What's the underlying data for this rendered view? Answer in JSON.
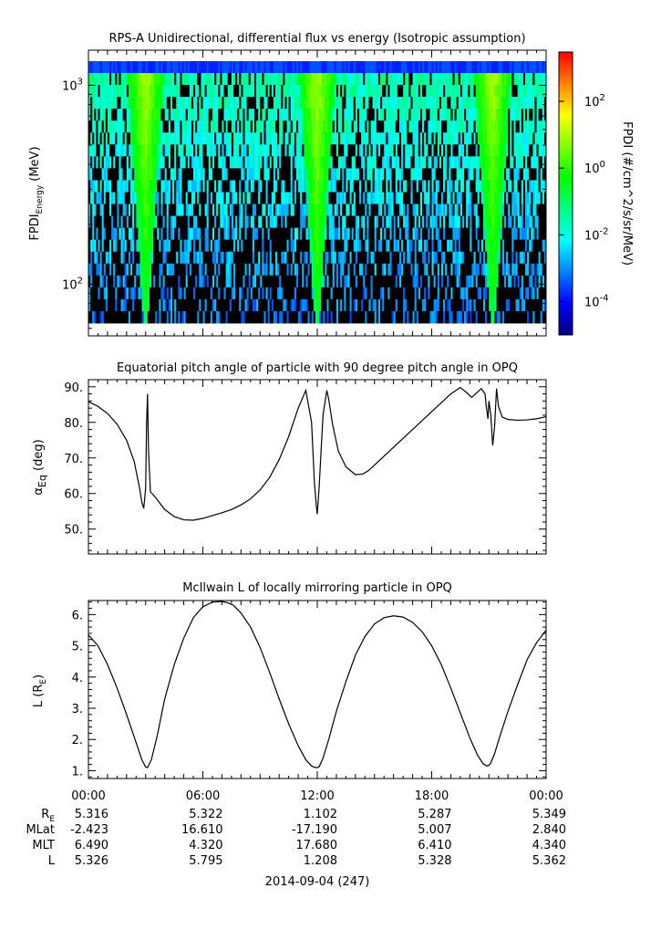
{
  "chart_data": [
    {
      "type": "heatmap",
      "title": "RPS-A Unidirectional, differential flux vs energy (Isotropic assumption)",
      "ylabel_main": "FPDI",
      "ylabel_sub": "Energy",
      "ylabel_unit": " (MeV)",
      "yscale": "log",
      "ylim": [
        55,
        1500
      ],
      "yticks": [
        {
          "value": 100,
          "base": "10",
          "exp": "2"
        },
        {
          "value": 1000,
          "base": "10",
          "exp": "3"
        }
      ],
      "zlabel": "FPDI (#/cm^2/s/sr/MeV)",
      "zscale": "log",
      "zlim": [
        1e-05,
        3000
      ],
      "zticks": [
        {
          "value": 100,
          "base": "10",
          "exp": "2"
        },
        {
          "value": 1,
          "base": "10",
          "exp": "0"
        },
        {
          "value": 0.01,
          "base": "10",
          "exp": "-2"
        },
        {
          "value": 0.0001,
          "base": "10",
          "exp": "-4"
        }
      ],
      "colormap": [
        "#00007f",
        "#0000ff",
        "#0080ff",
        "#00ffff",
        "#00ff80",
        "#00ff00",
        "#80ff00",
        "#ffff00",
        "#ff8000",
        "#ff0000"
      ],
      "radiation_belt_passes_hours": [
        3.0,
        12.0,
        21.2
      ]
    },
    {
      "type": "line",
      "title": "Equatorial pitch angle of particle with 90 degree pitch angle in OPQ",
      "ylabel_main": "α",
      "ylabel_sub": "Eq",
      "ylabel_unit": " (deg)",
      "ylim": [
        43,
        92
      ],
      "yticks": [
        "50.",
        "60.",
        "70.",
        "80.",
        "90."
      ],
      "x": [
        0,
        0.5,
        1.0,
        1.5,
        2.0,
        2.4,
        2.7,
        2.8,
        2.9,
        3.0,
        3.05,
        3.1,
        3.15,
        3.25,
        3.5,
        4.0,
        4.5,
        5.0,
        5.5,
        6.0,
        6.5,
        7.0,
        7.5,
        8.0,
        8.5,
        9.0,
        9.5,
        10.0,
        10.5,
        11.0,
        11.4,
        11.7,
        11.85,
        11.95,
        12.0,
        12.1,
        12.3,
        12.5,
        12.6,
        12.8,
        13.1,
        13.5,
        14.0,
        14.4,
        14.7,
        15.0,
        15.5,
        16.0,
        16.5,
        17.0,
        17.5,
        18.0,
        18.5,
        19.0,
        19.5,
        19.8,
        20.1,
        20.4,
        20.6,
        20.8,
        20.85,
        20.9,
        20.95,
        21.0,
        21.1,
        21.2,
        21.3,
        21.4,
        21.5,
        21.7,
        22.0,
        22.5,
        23.0,
        23.5,
        24.0
      ],
      "y": [
        85.8,
        84.5,
        82.5,
        79.5,
        75.0,
        69.0,
        61.0,
        57.5,
        55.8,
        61.5,
        80.0,
        88.0,
        72.0,
        60.5,
        59.0,
        55.5,
        53.5,
        52.6,
        52.5,
        53.0,
        53.8,
        54.6,
        55.5,
        56.8,
        58.5,
        61.0,
        64.5,
        69.5,
        76.0,
        84.0,
        89.0,
        80.0,
        63.0,
        56.5,
        54.2,
        62.0,
        82.0,
        89.0,
        86.5,
        79.5,
        72.0,
        67.5,
        65.3,
        65.5,
        66.5,
        68.0,
        70.5,
        73.0,
        75.5,
        78.0,
        80.5,
        83.0,
        85.5,
        88.0,
        89.8,
        88.5,
        87.0,
        88.5,
        89.5,
        88.0,
        85.0,
        83.0,
        81.0,
        86.0,
        82.0,
        73.5,
        79.0,
        89.5,
        84.5,
        81.5,
        80.8,
        80.6,
        80.7,
        81.0,
        81.6
      ]
    },
    {
      "type": "line",
      "title": "McIlwain L of locally mirroring particle in OPQ",
      "ylabel_main": "L (R",
      "ylabel_sub": "E",
      "ylabel_unit": ")",
      "ylim": [
        0.75,
        6.45
      ],
      "yticks": [
        "1.",
        "2.",
        "3.",
        "4.",
        "5.",
        "6."
      ],
      "x": [
        0,
        0.5,
        1.0,
        1.5,
        2.0,
        2.5,
        2.8,
        3.0,
        3.1,
        3.3,
        3.6,
        4.0,
        4.5,
        5.0,
        5.5,
        6.0,
        6.5,
        7.0,
        7.3,
        7.6,
        8.0,
        8.5,
        9.0,
        9.5,
        10.0,
        10.5,
        11.0,
        11.4,
        11.7,
        11.9,
        12.0,
        12.1,
        12.3,
        12.6,
        13.0,
        13.5,
        14.0,
        14.5,
        15.0,
        15.5,
        16.0,
        16.5,
        17.0,
        17.5,
        18.0,
        18.5,
        19.0,
        19.5,
        20.0,
        20.4,
        20.7,
        20.9,
        21.0,
        21.1,
        21.3,
        21.6,
        22.0,
        22.5,
        23.0,
        23.5,
        24.0
      ],
      "y": [
        5.35,
        5.0,
        4.4,
        3.65,
        2.8,
        1.9,
        1.35,
        1.12,
        1.1,
        1.35,
        2.1,
        3.3,
        4.4,
        5.25,
        5.9,
        6.25,
        6.4,
        6.42,
        6.38,
        6.3,
        6.05,
        5.6,
        4.95,
        4.15,
        3.3,
        2.5,
        1.8,
        1.35,
        1.15,
        1.1,
        1.1,
        1.13,
        1.4,
        2.0,
        2.9,
        3.85,
        4.7,
        5.3,
        5.7,
        5.9,
        5.96,
        5.92,
        5.75,
        5.45,
        5.0,
        4.4,
        3.65,
        2.85,
        2.05,
        1.5,
        1.22,
        1.15,
        1.17,
        1.25,
        1.55,
        2.15,
        2.9,
        3.75,
        4.55,
        5.1,
        5.5
      ]
    }
  ],
  "xaxis": {
    "xlim_hours": [
      0,
      24
    ],
    "tick_labels": [
      "00:00",
      "06:00",
      "12:00",
      "18:00",
      "00:00"
    ],
    "date_label": "2014-09-04 (247)"
  },
  "ephemeris": {
    "rows": [
      {
        "label_main": "R",
        "label_sub": "E",
        "values": [
          "5.316",
          "5.322",
          "1.102",
          "5.287",
          "5.349"
        ]
      },
      {
        "label_main": "MLat",
        "label_sub": "",
        "values": [
          "-2.423",
          "16.610",
          "-17.190",
          "5.007",
          "2.840"
        ]
      },
      {
        "label_main": "MLT",
        "label_sub": "",
        "values": [
          "6.490",
          "4.320",
          "17.680",
          "6.410",
          "4.340"
        ]
      },
      {
        "label_main": "L",
        "label_sub": "",
        "values": [
          "5.326",
          "5.795",
          "1.208",
          "5.328",
          "5.362"
        ]
      }
    ]
  }
}
